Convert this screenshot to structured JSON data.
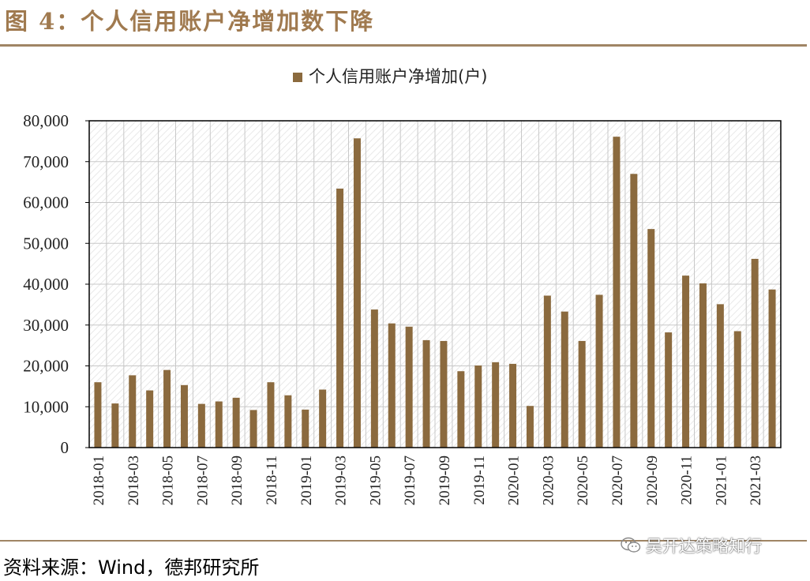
{
  "header": {
    "title": "图 4：个人信用账户净增加数下降"
  },
  "footer": {
    "source": "资料来源：Wind，德邦研究所",
    "watermark": "吴开达策略知行",
    "watermark_icon": "wechat-icon"
  },
  "colors": {
    "bar": "#8b6a3e",
    "title": "#a07a4f",
    "rule": "#a08565",
    "grid": "#c8c8c8"
  },
  "chart_data": {
    "type": "bar",
    "legend_position": "top-center",
    "grid": true,
    "ylim": [
      0,
      80000
    ],
    "yticks": [
      "0",
      "10,000",
      "20,000",
      "30,000",
      "40,000",
      "50,000",
      "60,000",
      "70,000",
      "80,000"
    ],
    "series": [
      {
        "name": "个人信用账户净增加(户)",
        "values": [
          16000,
          10800,
          17700,
          14000,
          19000,
          15300,
          10700,
          11300,
          12200,
          9200,
          16000,
          12800,
          9300,
          14200,
          63400,
          75700,
          33800,
          30400,
          29600,
          26300,
          26100,
          18700,
          20100,
          20900,
          20500,
          10200,
          37200,
          33300,
          26100,
          37400,
          76100,
          67000,
          53500,
          28200,
          42100,
          40200,
          35100,
          28500,
          46200,
          38700
        ]
      }
    ],
    "categories": [
      "2018-01",
      "2018-02",
      "2018-03",
      "2018-04",
      "2018-05",
      "2018-06",
      "2018-07",
      "2018-08",
      "2018-09",
      "2018-10",
      "2018-11",
      "2018-12",
      "2019-01",
      "2019-02",
      "2019-03",
      "2019-04",
      "2019-05",
      "2019-06",
      "2019-07",
      "2019-08",
      "2019-09",
      "2019-10",
      "2019-11",
      "2019-12",
      "2020-01",
      "2020-02",
      "2020-03",
      "2020-04",
      "2020-05",
      "2020-06",
      "2020-07",
      "2020-08",
      "2020-09",
      "2020-10",
      "2020-11",
      "2020-12",
      "2021-01",
      "2021-02",
      "2021-03",
      "2021-04"
    ],
    "xtick_labels": [
      "2018-01",
      "2018-03",
      "2018-05",
      "2018-07",
      "2018-09",
      "2018-11",
      "2019-01",
      "2019-03",
      "2019-05",
      "2019-07",
      "2019-09",
      "2019-11",
      "2020-01",
      "2020-03",
      "2020-05",
      "2020-07",
      "2020-09",
      "2020-11",
      "2021-01",
      "2021-03"
    ]
  }
}
